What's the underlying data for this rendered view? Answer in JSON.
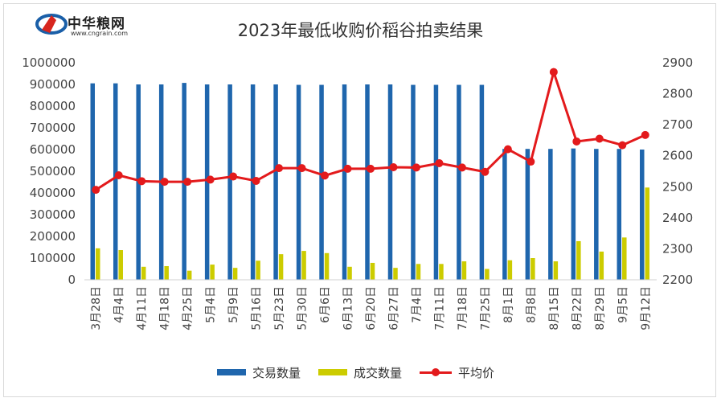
{
  "logo": {
    "name": "中华粮网",
    "url": "www.cngrain.com"
  },
  "chart_data": {
    "type": "bar",
    "title": "2023年最低收购价稻谷拍卖结果",
    "categories": [
      "3月28日",
      "4月4日",
      "4月11日",
      "4月18日",
      "4月25日",
      "5月4日",
      "5月9日",
      "5月16日",
      "5月23日",
      "5月30日",
      "6月6日",
      "6月13日",
      "6月20日",
      "6月27日",
      "7月4日",
      "7月11日",
      "7月18日",
      "7月25日",
      "8月1日",
      "8月8日",
      "8月15日",
      "8月22日",
      "8月29日",
      "9月5日",
      "9月12日"
    ],
    "y_left": {
      "min": 0,
      "max": 1000000,
      "step": 100000
    },
    "y_right": {
      "min": 2200,
      "max": 2900,
      "step": 100
    },
    "series": [
      {
        "name": "交易数量",
        "type": "bar",
        "axis": "left",
        "color": "#1f66ad",
        "values": [
          905000,
          905000,
          900000,
          900000,
          907000,
          900000,
          900000,
          900000,
          900000,
          898000,
          898000,
          900000,
          900000,
          900000,
          898000,
          898000,
          898000,
          898000,
          603000,
          603000,
          603000,
          605000,
          603000,
          603000,
          600000
        ]
      },
      {
        "name": "成交数量",
        "type": "bar",
        "axis": "left",
        "color": "#cccc00",
        "values": [
          145000,
          137000,
          60000,
          63000,
          42000,
          70000,
          55000,
          88000,
          118000,
          133000,
          123000,
          60000,
          78000,
          55000,
          73000,
          73000,
          85000,
          50000,
          90000,
          100000,
          85000,
          178000,
          130000,
          195000,
          425000
        ]
      },
      {
        "name": "平均价",
        "type": "line",
        "axis": "right",
        "color": "#e31a1c",
        "values": [
          2490,
          2537,
          2518,
          2516,
          2516,
          2523,
          2533,
          2519,
          2560,
          2560,
          2536,
          2558,
          2558,
          2563,
          2562,
          2576,
          2562,
          2548,
          2621,
          2581,
          2870,
          2646,
          2655,
          2634,
          2667
        ]
      }
    ]
  }
}
